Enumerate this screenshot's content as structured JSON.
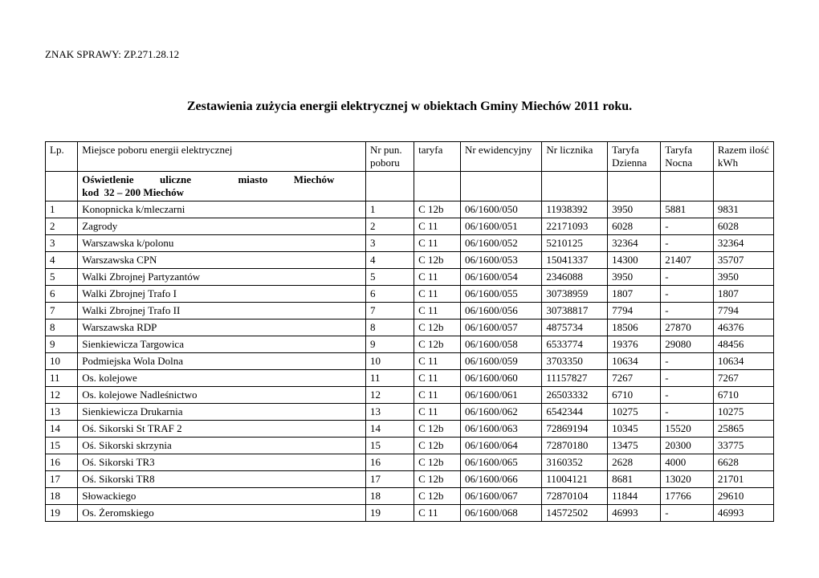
{
  "case_sign": "ZNAK SPRAWY:  ZP.271.28.12",
  "title": "Zestawienia zużycia energii elektrycznej w obiektach Gminy Miechów  2011 roku.",
  "columns": {
    "lp": "Lp.",
    "location": "Miejsce poboru energii elektrycznej",
    "pun": "Nr pun. poboru",
    "taryfa": "taryfa",
    "ewid": "Nr ewidencyjny",
    "licznik": "Nr licznika",
    "dzienna": "Taryfa Dzienna",
    "nocna": "Taryfa Nocna",
    "razem": "Razem ilość kWh"
  },
  "section_line1": "Oświetlenie          uliczne                  miasto          Miechów",
  "section_line2": "kod  32 – 200 Miechów",
  "rows": [
    {
      "lp": "1",
      "loc": "Konopnicka k/mleczarni",
      "pun": "1",
      "tar": "C 12b",
      "ew": "06/1600/050",
      "licz": "11938392",
      "dz": "3950",
      "noc": "5881",
      "raz": "9831"
    },
    {
      "lp": "2",
      "loc": "Zagrody",
      "pun": "2",
      "tar": "C 11",
      "ew": "06/1600/051",
      "licz": "22171093",
      "dz": "6028",
      "noc": "-",
      "raz": "6028"
    },
    {
      "lp": "3",
      "loc": "Warszawska k/polonu",
      "pun": "3",
      "tar": "C 11",
      "ew": "06/1600/052",
      "licz": "5210125",
      "dz": "32364",
      "noc": "-",
      "raz": "32364"
    },
    {
      "lp": "4",
      "loc": "Warszawska CPN",
      "pun": "4",
      "tar": "C 12b",
      "ew": "06/1600/053",
      "licz": "15041337",
      "dz": "14300",
      "noc": "21407",
      "raz": "35707"
    },
    {
      "lp": "5",
      "loc": "Walki Zbrojnej Partyzantów",
      "pun": "5",
      "tar": "C 11",
      "ew": "06/1600/054",
      "licz": "2346088",
      "dz": "3950",
      "noc": "-",
      "raz": "3950"
    },
    {
      "lp": "6",
      "loc": "Walki Zbrojnej Trafo I",
      "pun": "6",
      "tar": "C 11",
      "ew": "06/1600/055",
      "licz": "30738959",
      "dz": "1807",
      "noc": "-",
      "raz": "1807"
    },
    {
      "lp": "7",
      "loc": "Walki Zbrojnej Trafo II",
      "pun": "7",
      "tar": "C 11",
      "ew": "06/1600/056",
      "licz": "30738817",
      "dz": "7794",
      "noc": "-",
      "raz": "7794"
    },
    {
      "lp": "8",
      "loc": "Warszawska RDP",
      "pun": "8",
      "tar": "C 12b",
      "ew": "06/1600/057",
      "licz": "4875734",
      "dz": "18506",
      "noc": "27870",
      "raz": "46376"
    },
    {
      "lp": "9",
      "loc": "Sienkiewicza Targowica",
      "pun": "9",
      "tar": "C 12b",
      "ew": "06/1600/058",
      "licz": "6533774",
      "dz": "19376",
      "noc": "29080",
      "raz": "48456"
    },
    {
      "lp": "10",
      "loc": "Podmiejska Wola Dolna",
      "pun": "10",
      "tar": "C 11",
      "ew": "06/1600/059",
      "licz": "3703350",
      "dz": "10634",
      "noc": "-",
      "raz": "10634"
    },
    {
      "lp": "11",
      "loc": "Os. kolejowe",
      "pun": "11",
      "tar": "C 11",
      "ew": "06/1600/060",
      "licz": "11157827",
      "dz": "7267",
      "noc": "-",
      "raz": "7267"
    },
    {
      "lp": "12",
      "loc": "Os. kolejowe Nadleśnictwo",
      "pun": "12",
      "tar": "C 11",
      "ew": "06/1600/061",
      "licz": "26503332",
      "dz": "6710",
      "noc": "-",
      "raz": "6710"
    },
    {
      "lp": "13",
      "loc": "Sienkiewicza Drukarnia",
      "pun": "13",
      "tar": "C 11",
      "ew": "06/1600/062",
      "licz": "6542344",
      "dz": "10275",
      "noc": "-",
      "raz": "10275"
    },
    {
      "lp": "14",
      "loc": "Oś. Sikorski St TRAF 2",
      "pun": "14",
      "tar": "C 12b",
      "ew": "06/1600/063",
      "licz": "72869194",
      "dz": "10345",
      "noc": "15520",
      "raz": "25865"
    },
    {
      "lp": "15",
      "loc": "Oś. Sikorski skrzynia",
      "pun": "15",
      "tar": "C 12b",
      "ew": "06/1600/064",
      "licz": "72870180",
      "dz": "13475",
      "noc": "20300",
      "raz": "33775"
    },
    {
      "lp": "16",
      "loc": "Oś. Sikorski TR3",
      "pun": "16",
      "tar": "C 12b",
      "ew": "06/1600/065",
      "licz": "3160352",
      "dz": "2628",
      "noc": "4000",
      "raz": "6628"
    },
    {
      "lp": "17",
      "loc": "Oś. Sikorski TR8",
      "pun": "17",
      "tar": "C 12b",
      "ew": "06/1600/066",
      "licz": "11004121",
      "dz": "8681",
      "noc": "13020",
      "raz": "21701"
    },
    {
      "lp": "18",
      "loc": "Słowackiego",
      "pun": "18",
      "tar": "C 12b",
      "ew": "06/1600/067",
      "licz": "72870104",
      "dz": "11844",
      "noc": "17766",
      "raz": "29610"
    },
    {
      "lp": "19",
      "loc": "Os. Żeromskiego",
      "pun": "19",
      "tar": "C 11",
      "ew": "06/1600/068",
      "licz": "14572502",
      "dz": "46993",
      "noc": "-",
      "raz": "46993"
    }
  ]
}
